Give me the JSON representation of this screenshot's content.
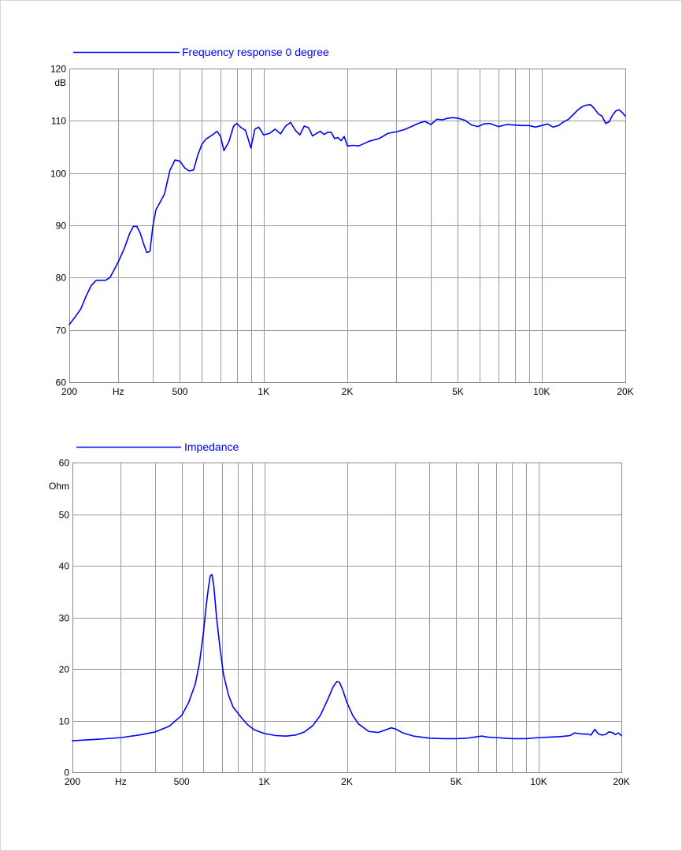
{
  "chart_data": [
    {
      "type": "line",
      "title": "",
      "ylabel": "dB",
      "xlabel": "Hz",
      "x_scale": "log",
      "xlim": [
        200,
        20000
      ],
      "ylim": [
        60,
        120
      ],
      "grid": true,
      "legend": "top-left",
      "x_tick_labels": [
        "200",
        "Hz",
        "500",
        "1K",
        "2K",
        "5K",
        "10K",
        "20K"
      ],
      "x_tick_values": [
        200,
        300,
        500,
        1000,
        2000,
        5000,
        10000,
        20000
      ],
      "y_tick_labels": [
        "60",
        "70",
        "80",
        "90",
        "100",
        "110",
        "120"
      ],
      "color": "#0000ff",
      "series": [
        {
          "name": "Frequency response 0 degree",
          "x": [
            200,
            210,
            220,
            230,
            240,
            250,
            260,
            270,
            280,
            290,
            300,
            315,
            330,
            340,
            350,
            360,
            370,
            380,
            390,
            400,
            410,
            420,
            440,
            460,
            480,
            500,
            520,
            540,
            560,
            580,
            600,
            620,
            650,
            680,
            700,
            720,
            750,
            780,
            800,
            830,
            860,
            880,
            900,
            930,
            960,
            1000,
            1050,
            1100,
            1150,
            1200,
            1250,
            1300,
            1350,
            1400,
            1450,
            1500,
            1550,
            1600,
            1650,
            1700,
            1750,
            1800,
            1850,
            1900,
            1950,
            2000,
            2100,
            2200,
            2400,
            2600,
            2800,
            3000,
            3200,
            3400,
            3600,
            3800,
            4000,
            4200,
            4400,
            4600,
            4800,
            5000,
            5300,
            5600,
            5900,
            6200,
            6500,
            7000,
            7500,
            8000,
            8500,
            9000,
            9500,
            10000,
            10500,
            11000,
            11500,
            12000,
            12500,
            13000,
            13500,
            14000,
            14500,
            15000,
            15500,
            16000,
            16500,
            17000,
            17500,
            18000,
            18500,
            19000,
            19500,
            20000
          ],
          "values": [
            71,
            72.5,
            74,
            76.5,
            78.5,
            79.5,
            79.5,
            79.5,
            80,
            81.5,
            83,
            85.5,
            88.5,
            89.8,
            89.8,
            88.5,
            86.5,
            84.8,
            85,
            90,
            93,
            94,
            96,
            100.5,
            102.5,
            102.3,
            101,
            100.4,
            100.6,
            103.5,
            105.5,
            106.5,
            107.2,
            108,
            107,
            104.3,
            106,
            109,
            109.5,
            108.7,
            108.2,
            106.5,
            104.8,
            108.4,
            108.8,
            107.3,
            107.6,
            108.4,
            107.5,
            109,
            109.7,
            108.2,
            107.3,
            109,
            108.7,
            107.1,
            107.6,
            108,
            107.4,
            107.8,
            107.8,
            106.6,
            106.8,
            106.2,
            107,
            105.2,
            105.3,
            105.2,
            106.1,
            106.6,
            107.6,
            107.9,
            108.3,
            108.9,
            109.5,
            109.9,
            109.3,
            110.3,
            110.2,
            110.5,
            110.6,
            110.5,
            110.1,
            109.2,
            108.9,
            109.4,
            109.5,
            108.9,
            109.3,
            109.2,
            109.1,
            109.1,
            108.8,
            109.1,
            109.4,
            108.8,
            109.1,
            109.8,
            110.3,
            111.2,
            112.1,
            112.7,
            113,
            113.1,
            112.3,
            111.3,
            110.9,
            109.5,
            109.8,
            111.1,
            111.9,
            112.1,
            111.6,
            110.9
          ]
        }
      ]
    },
    {
      "type": "line",
      "title": "",
      "ylabel": "Ohm",
      "xlabel": "Hz",
      "x_scale": "log",
      "xlim": [
        200,
        20000
      ],
      "ylim": [
        0,
        60
      ],
      "grid": true,
      "legend": "top-left",
      "x_tick_labels": [
        "200",
        "Hz",
        "500",
        "1K",
        "2K",
        "5K",
        "10K",
        "20K"
      ],
      "x_tick_values": [
        200,
        300,
        500,
        1000,
        2000,
        5000,
        10000,
        20000
      ],
      "y_tick_labels": [
        "0",
        "10",
        "20",
        "30",
        "40",
        "50",
        "60"
      ],
      "color": "#0000ff",
      "series": [
        {
          "name": "Impedance",
          "x": [
            200,
            250,
            300,
            350,
            400,
            450,
            500,
            530,
            560,
            580,
            600,
            615,
            625,
            635,
            645,
            655,
            670,
            690,
            710,
            740,
            770,
            800,
            830,
            870,
            920,
            1000,
            1100,
            1200,
            1300,
            1400,
            1500,
            1600,
            1700,
            1780,
            1840,
            1880,
            1930,
            2000,
            2100,
            2200,
            2400,
            2600,
            2800,
            2900,
            3000,
            3200,
            3500,
            4000,
            4500,
            5000,
            5500,
            6000,
            6200,
            6500,
            7000,
            7500,
            8000,
            9000,
            10000,
            11000,
            12000,
            12500,
            13000,
            13500,
            14000,
            14500,
            15000,
            15500,
            16000,
            16500,
            17000,
            17500,
            18000,
            18500,
            19000,
            19500,
            20000
          ],
          "values": [
            6.1,
            6.4,
            6.7,
            7.2,
            7.8,
            8.9,
            11,
            13.5,
            17,
            21,
            27,
            32.5,
            35.5,
            38,
            38.3,
            36,
            30,
            24,
            19,
            15,
            12.6,
            11.5,
            10.4,
            9.2,
            8.2,
            7.5,
            7.1,
            7,
            7.2,
            7.8,
            9,
            11,
            14,
            16.5,
            17.6,
            17.4,
            16,
            13.5,
            11,
            9.4,
            7.9,
            7.7,
            8.3,
            8.6,
            8.4,
            7.6,
            7,
            6.6,
            6.5,
            6.5,
            6.6,
            6.9,
            7,
            6.8,
            6.7,
            6.6,
            6.5,
            6.5,
            6.7,
            6.8,
            6.9,
            7,
            7.1,
            7.6,
            7.5,
            7.4,
            7.4,
            7.2,
            8.3,
            7.4,
            7.2,
            7.3,
            7.8,
            7.7,
            7.3,
            7.6,
            7.1
          ]
        }
      ]
    }
  ]
}
